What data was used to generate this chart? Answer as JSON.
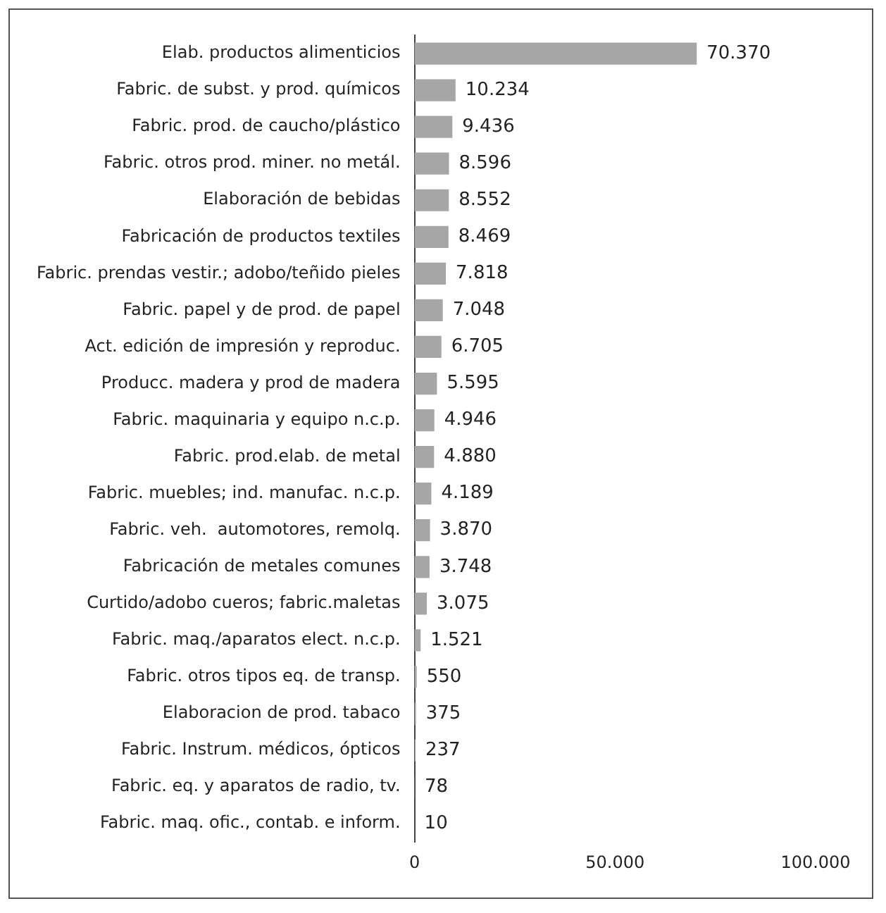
{
  "chart_data": {
    "type": "bar",
    "orientation": "horizontal",
    "categories": [
      "Elab. productos alimenticios",
      "Fabric. de subst. y prod. químicos",
      "Fabric. prod. de caucho/plástico",
      "Fabric. otros prod. miner. no metál.",
      "Elaboración de bebidas",
      "Fabricación de productos textiles",
      "Fabric. prendas vestir.; adobo/teñido pieles",
      "Fabric. papel y de prod. de papel",
      "Act. edición de impresión y reproduc.",
      "Producc. madera y prod de madera",
      "Fabric. maquinaria y equipo n.c.p.",
      "Fabric. prod.elab. de metal",
      "Fabric. muebles; ind. manufac. n.c.p.",
      "Fabric. veh.  automotores, remolq.",
      "Fabricación de metales comunes",
      "Curtido/adobo cueros; fabric.maletas",
      "Fabric. maq./aparatos elect. n.c.p.",
      "Fabric. otros tipos eq. de transp.",
      "Elaboracion de prod. tabaco",
      "Fabric. Instrum. médicos, ópticos",
      "Fabric. eq. y aparatos de radio, tv.",
      "Fabric. maq. ofic., contab. e inform."
    ],
    "values": [
      70370,
      10234,
      9436,
      8596,
      8552,
      8469,
      7818,
      7048,
      6705,
      5595,
      4946,
      4880,
      4189,
      3870,
      3748,
      3075,
      1521,
      550,
      375,
      237,
      78,
      10
    ],
    "value_labels": [
      "70.370",
      "10.234",
      "9.436",
      "8.596",
      "8.552",
      "8.469",
      "7.818",
      "7.048",
      "6.705",
      "5.595",
      "4.946",
      "4.880",
      "4.189",
      "3.870",
      "3.748",
      "3.075",
      "1.521",
      "550",
      "375",
      "237",
      "78",
      "10"
    ],
    "color": "#a6a6a6",
    "xlim": [
      0,
      100000
    ],
    "xticks": [
      {
        "value": 0,
        "label": "0"
      },
      {
        "value": 50000,
        "label": "50.000"
      },
      {
        "value": 100000,
        "label": "100.000"
      }
    ],
    "grid": false,
    "legend": false
  }
}
